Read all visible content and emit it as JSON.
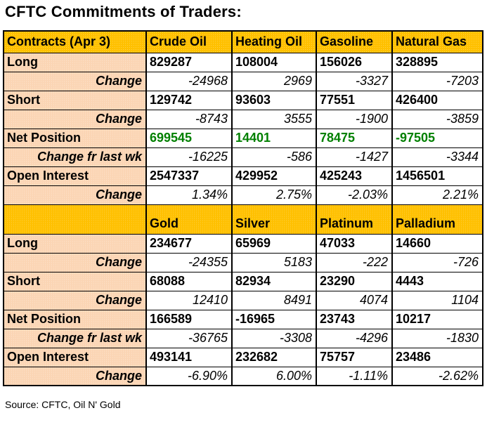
{
  "title": "CFTC Commitments of Traders:",
  "source_note": "Source: CFTC, Oil N' Gold",
  "colors": {
    "section_header_bg": "#ffc000",
    "row_label_bg": "#fbd5b4",
    "net_position_highlight": "#008000",
    "border": "#000000"
  },
  "chart_data": [
    {
      "type": "table",
      "title": "CFTC Commitments of Traders:",
      "columns": [
        "Contracts (Apr 3)",
        "Crude Oil",
        "Heating Oil",
        "Gasoline",
        "Natural Gas"
      ],
      "rows": [
        {
          "label": "Long",
          "kind": "value",
          "values": [
            "829287",
            "108004",
            "156026",
            "328895"
          ]
        },
        {
          "label": "Change",
          "kind": "change",
          "values": [
            "-24968",
            "2969",
            "-3327",
            "-7203"
          ]
        },
        {
          "label": "Short",
          "kind": "value",
          "values": [
            "129742",
            "93603",
            "77551",
            "426400"
          ]
        },
        {
          "label": "Change",
          "kind": "change",
          "values": [
            "-8743",
            "3555",
            "-1900",
            "-3859"
          ]
        },
        {
          "label": "Net Position",
          "kind": "value",
          "color": "green",
          "values": [
            "699545",
            "14401",
            "78475",
            "-97505"
          ]
        },
        {
          "label": "Change fr last wk",
          "kind": "change",
          "values": [
            "-16225",
            "-586",
            "-1427",
            "-3344"
          ]
        },
        {
          "label": "Open Interest",
          "kind": "value",
          "values": [
            "2547337",
            "429952",
            "425243",
            "1456501"
          ]
        },
        {
          "label": "Change",
          "kind": "change",
          "values": [
            "1.34%",
            "2.75%",
            "-2.03%",
            "2.21%"
          ]
        }
      ]
    },
    {
      "type": "table",
      "title": "",
      "columns": [
        "",
        "Gold",
        "Silver",
        "Platinum",
        "Palladium"
      ],
      "rows": [
        {
          "label": "Long",
          "kind": "value",
          "values": [
            "234677",
            "65969",
            "47033",
            "14660"
          ]
        },
        {
          "label": "Change",
          "kind": "change",
          "values": [
            "-24355",
            "5183",
            "-222",
            "-726"
          ]
        },
        {
          "label": "Short",
          "kind": "value",
          "values": [
            "68088",
            "82934",
            "23290",
            "4443"
          ]
        },
        {
          "label": "Change",
          "kind": "change",
          "values": [
            "12410",
            "8491",
            "4074",
            "1104"
          ]
        },
        {
          "label": "Net Position",
          "kind": "value",
          "values": [
            "166589",
            "-16965",
            "23743",
            "10217"
          ]
        },
        {
          "label": "Change fr last wk",
          "kind": "change",
          "values": [
            "-36765",
            "-3308",
            "-4296",
            "-1830"
          ]
        },
        {
          "label": "Open Interest",
          "kind": "value",
          "values": [
            "493141",
            "232682",
            "75757",
            "23486"
          ]
        },
        {
          "label": "Change",
          "kind": "change",
          "values": [
            "-6.90%",
            "6.00%",
            "-1.11%",
            "-2.62%"
          ]
        }
      ]
    }
  ]
}
